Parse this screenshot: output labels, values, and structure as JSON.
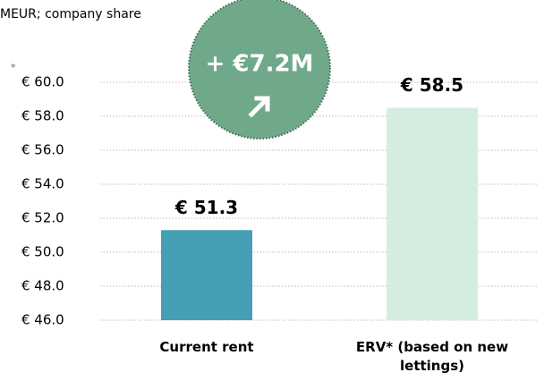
{
  "chart_data": {
    "type": "bar",
    "subtitle": "MEUR; company share",
    "footnote_marker": "*",
    "annotation": "+ €7.2M",
    "categories": [
      "Current rent",
      "ERV* (based on new lettings)"
    ],
    "values": [
      51.3,
      58.5
    ],
    "value_labels": [
      "€ 51.3",
      "€ 58.5"
    ],
    "colors": [
      "#449fb5",
      "#d5ede0"
    ],
    "ylim": [
      46,
      60
    ],
    "yticks": [
      {
        "value": 46,
        "label": "€ 46.0"
      },
      {
        "value": 48,
        "label": "€ 48.0"
      },
      {
        "value": 50,
        "label": "€ 50.0"
      },
      {
        "value": 52,
        "label": "€ 52.0"
      },
      {
        "value": 54,
        "label": "€ 54.0"
      },
      {
        "value": 56,
        "label": "€ 56.0"
      },
      {
        "value": 58,
        "label": "€ 58.0"
      },
      {
        "value": 60,
        "label": "€ 60.0"
      }
    ],
    "grid": true
  }
}
